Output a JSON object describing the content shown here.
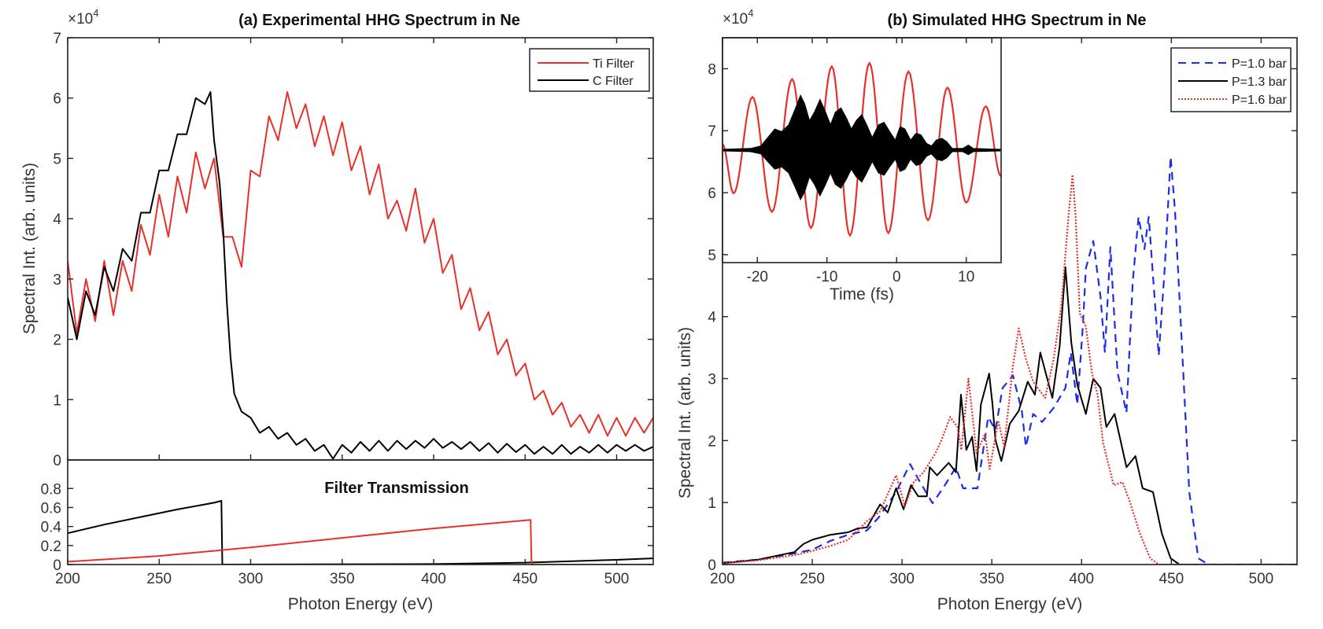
{
  "chart_data": [
    {
      "panel": "a-top",
      "type": "line",
      "title": "(a) Experimental HHG Spectrum in Ne",
      "ylabel": "Spectral Int. (arb. units)",
      "y_multiplier": {
        "base": "×10",
        "exp": "4"
      },
      "xlim": [
        200,
        520
      ],
      "ylim": [
        0,
        7
      ],
      "x_ticks": [
        200,
        250,
        300,
        350,
        400,
        450,
        500
      ],
      "y_ticks": [
        0,
        1,
        2,
        3,
        4,
        5,
        6,
        7
      ],
      "grid": false,
      "legend": "top-right",
      "series": [
        {
          "name": "Ti Filter",
          "color": "#e8302a",
          "style": "solid",
          "x": [
            200,
            205,
            210,
            215,
            220,
            225,
            230,
            235,
            240,
            245,
            250,
            255,
            260,
            265,
            270,
            275,
            280,
            285,
            290,
            295,
            300,
            305,
            310,
            315,
            320,
            325,
            330,
            335,
            340,
            345,
            350,
            355,
            360,
            365,
            370,
            375,
            380,
            385,
            390,
            395,
            400,
            405,
            410,
            415,
            420,
            425,
            430,
            435,
            440,
            445,
            450,
            455,
            460,
            465,
            470,
            475,
            480,
            485,
            490,
            495,
            500,
            505,
            510,
            515,
            520
          ],
          "y": [
            3.3,
            2.1,
            3.0,
            2.3,
            3.3,
            2.4,
            3.3,
            2.8,
            3.9,
            3.4,
            4.4,
            3.7,
            4.7,
            4.1,
            5.1,
            4.5,
            5.0,
            3.7,
            3.7,
            3.2,
            4.8,
            4.7,
            5.7,
            5.3,
            6.1,
            5.5,
            5.9,
            5.2,
            5.7,
            5.05,
            5.6,
            4.8,
            5.2,
            4.4,
            4.9,
            4.0,
            4.3,
            3.8,
            4.5,
            3.6,
            4.0,
            3.1,
            3.4,
            2.5,
            2.85,
            2.15,
            2.45,
            1.75,
            2.0,
            1.4,
            1.6,
            1.0,
            1.15,
            0.75,
            0.95,
            0.55,
            0.75,
            0.45,
            0.75,
            0.4,
            0.7,
            0.4,
            0.7,
            0.45,
            0.7
          ]
        },
        {
          "name": "C Filter",
          "color": "#000000",
          "style": "solid",
          "x": [
            200,
            205,
            210,
            215,
            220,
            225,
            230,
            235,
            240,
            245,
            250,
            255,
            260,
            265,
            270,
            275,
            278,
            280,
            283,
            285,
            287,
            289,
            291,
            295,
            300,
            305,
            310,
            315,
            320,
            325,
            330,
            335,
            340,
            345,
            350,
            355,
            360,
            365,
            370,
            375,
            380,
            385,
            390,
            395,
            400,
            405,
            410,
            415,
            420,
            425,
            430,
            435,
            440,
            445,
            450,
            455,
            460,
            465,
            470,
            475,
            480,
            485,
            490,
            495,
            500,
            505,
            510,
            515,
            520
          ],
          "y": [
            2.7,
            2.0,
            2.8,
            2.4,
            3.2,
            2.8,
            3.5,
            3.3,
            4.1,
            4.1,
            4.8,
            4.8,
            5.4,
            5.4,
            6.0,
            5.9,
            6.1,
            5.3,
            4.6,
            3.8,
            2.6,
            1.7,
            1.1,
            0.8,
            0.7,
            0.45,
            0.55,
            0.35,
            0.45,
            0.25,
            0.35,
            0.15,
            0.25,
            0.02,
            0.25,
            0.12,
            0.3,
            0.15,
            0.32,
            0.15,
            0.32,
            0.18,
            0.32,
            0.2,
            0.35,
            0.2,
            0.3,
            0.18,
            0.3,
            0.15,
            0.28,
            0.12,
            0.27,
            0.13,
            0.25,
            0.1,
            0.22,
            0.1,
            0.25,
            0.1,
            0.22,
            0.12,
            0.25,
            0.12,
            0.25,
            0.15,
            0.25,
            0.15,
            0.22
          ]
        }
      ]
    },
    {
      "panel": "a-bottom",
      "type": "line",
      "title": "Filter Transmission",
      "xlabel": "Photon Energy (eV)",
      "xlim": [
        200,
        520
      ],
      "ylim": [
        0,
        1.1
      ],
      "x_ticks": [
        200,
        250,
        300,
        350,
        400,
        450,
        500
      ],
      "y_ticks": [
        0,
        0.2,
        0.4,
        0.6,
        0.8
      ],
      "grid": false,
      "series": [
        {
          "color": "#000000",
          "style": "solid",
          "x": [
            200,
            220,
            240,
            260,
            280,
            284,
            284.5,
            400,
            450,
            500,
            520
          ],
          "y": [
            0.33,
            0.42,
            0.5,
            0.58,
            0.65,
            0.67,
            0,
            0.005,
            0.02,
            0.05,
            0.065
          ]
        },
        {
          "color": "#e8302a",
          "style": "solid",
          "x": [
            200,
            250,
            300,
            350,
            400,
            453,
            453.5,
            520
          ],
          "y": [
            0.03,
            0.09,
            0.18,
            0.28,
            0.38,
            0.47,
            0,
            0
          ]
        }
      ]
    },
    {
      "panel": "b-main",
      "type": "line",
      "title": "(b) Simulated HHG Spectrum in Ne",
      "xlabel": "Photon Energy (eV)",
      "ylabel": "Spectral Int. (arb. units)",
      "y_multiplier": {
        "base": "×10",
        "exp": "4"
      },
      "xlim": [
        200,
        520
      ],
      "ylim": [
        0,
        8.5
      ],
      "x_ticks": [
        200,
        250,
        300,
        350,
        400,
        450,
        500
      ],
      "y_ticks": [
        0,
        1,
        2,
        3,
        4,
        5,
        6,
        7,
        8
      ],
      "grid": false,
      "legend": "top-right",
      "series": [
        {
          "name": "P=1.0 bar",
          "color": "#1a2ee8",
          "style": "dashed",
          "x": [
            200,
            220,
            240,
            250,
            260,
            270,
            280.5,
            287,
            296.7,
            304.5,
            309,
            317,
            322.8,
            330,
            334,
            342,
            348,
            352,
            356,
            361.8,
            366.7,
            369,
            373,
            378,
            384.5,
            391,
            394,
            397.6,
            400.8,
            402.4,
            406.5,
            410.6,
            413,
            416,
            420,
            425,
            428.5,
            431.7,
            435,
            437.4,
            443,
            446.3,
            449.6,
            452,
            455,
            457.7,
            460,
            465,
            470.7,
            520
          ],
          "y": [
            0.03,
            0.08,
            0.18,
            0.24,
            0.38,
            0.48,
            0.55,
            0.76,
            1.17,
            1.62,
            1.38,
            0.99,
            1.23,
            1.57,
            1.23,
            1.23,
            2.38,
            2.17,
            2.85,
            3.05,
            2.48,
            1.9,
            2.43,
            2.3,
            2.53,
            2.85,
            3.42,
            2.58,
            3.89,
            4.78,
            5.22,
            4.31,
            3.42,
            5.12,
            3.1,
            2.45,
            4.57,
            5.61,
            5.09,
            5.61,
            3.37,
            4.78,
            6.58,
            5.72,
            4.05,
            2.48,
            1.17,
            0.1,
            0,
            0
          ]
        },
        {
          "name": "P=1.3 bar",
          "color": "#000000",
          "style": "solid",
          "x": [
            200,
            220,
            240,
            245,
            250,
            260,
            270,
            275,
            280.5,
            287.8,
            292,
            296.7,
            300.8,
            305,
            309,
            313.8,
            315.4,
            319.5,
            326,
            330,
            332.8,
            335.8,
            339,
            341.5,
            343.9,
            348.5,
            350.4,
            352,
            355.3,
            360,
            365,
            370,
            374,
            377,
            383.7,
            387.8,
            391,
            394.3,
            397.6,
            402.4,
            406.5,
            410.6,
            413.8,
            418.4,
            425,
            430,
            434,
            439.8,
            444.7,
            449.6,
            454.5,
            520
          ],
          "y": [
            0.02,
            0.08,
            0.2,
            0.33,
            0.4,
            0.48,
            0.52,
            0.58,
            0.6,
            0.97,
            0.84,
            1.23,
            0.89,
            1.28,
            1.1,
            1.1,
            1.57,
            1.44,
            1.64,
            1.49,
            2.74,
            1.85,
            2.06,
            1.51,
            2.58,
            3.08,
            2.58,
            2.01,
            1.67,
            2.27,
            2.48,
            2.95,
            2.74,
            3.42,
            2.69,
            3.52,
            4.8,
            3.58,
            2.9,
            2.43,
            3.0,
            2.85,
            2.22,
            2.43,
            1.57,
            1.75,
            1.23,
            1.17,
            0.5,
            0.1,
            0,
            0
          ]
        },
        {
          "name": "P=1.6 bar",
          "color": "#e8302a",
          "style": "dotted",
          "x": [
            200,
            220,
            240,
            250,
            260,
            270,
            280.5,
            287.8,
            296.7,
            301.6,
            306.5,
            312,
            318.7,
            322,
            326.8,
            330.9,
            333,
            337,
            341.5,
            346.3,
            348.8,
            353.6,
            356.9,
            361.8,
            365,
            369,
            373,
            379.7,
            384.5,
            388.6,
            392.7,
            395,
            396.7,
            399,
            402.4,
            405.7,
            408.9,
            412,
            417.9,
            422.8,
            426.8,
            432.5,
            438.2,
            443,
            520
          ],
          "y": [
            0.02,
            0.07,
            0.15,
            0.22,
            0.3,
            0.4,
            0.7,
            0.86,
            1.44,
            0.94,
            1.33,
            1.49,
            1.8,
            2.01,
            2.38,
            2.22,
            1.85,
            3.0,
            1.8,
            2.11,
            1.54,
            2.32,
            1.9,
            3.21,
            3.81,
            3.32,
            2.95,
            2.69,
            3.32,
            4.15,
            5.61,
            6.29,
            5.61,
            4.05,
            3.84,
            3.1,
            2.74,
            1.96,
            1.28,
            1.33,
            1.02,
            0.5,
            0.1,
            0,
            0
          ]
        }
      ]
    },
    {
      "panel": "b-inset",
      "type": "line",
      "xlabel": "Time (fs)",
      "xlim": [
        -25,
        15
      ],
      "ylim": [
        -1.33,
        1.33
      ],
      "x_ticks": [
        -20,
        -10,
        0,
        10
      ],
      "grid": false,
      "series": [
        {
          "color": "#e8302a",
          "style": "solid",
          "shape": "field-extrema",
          "x": [
            -25,
            -23.4,
            -20.7,
            -17.9,
            -15.0,
            -12.3,
            -9.3,
            -6.7,
            -3.9,
            -1.2,
            1.7,
            4.5,
            7.3,
            10.0,
            12.8,
            15.0
          ],
          "y": [
            0.07,
            -0.51,
            0.63,
            -0.73,
            0.84,
            -0.92,
            0.99,
            -1.01,
            1.03,
            -0.98,
            0.93,
            -0.83,
            0.74,
            -0.62,
            0.52,
            -0.31
          ]
        },
        {
          "color": "#000000",
          "style": "filled-envelope",
          "shape": "envelope",
          "x": [
            -25,
            -21,
            -19.5,
            -18.5,
            -17.5,
            -16.5,
            -15.5,
            -14.5,
            -13.8,
            -13.2,
            -12.5,
            -11.8,
            -11,
            -10.2,
            -9.5,
            -8.8,
            -8,
            -7.2,
            -6.5,
            -5.8,
            -5,
            -4.3,
            -3.5,
            -2.6,
            -1.8,
            -1,
            -0.2,
            0.5,
            1.2,
            2,
            2.8,
            3.5,
            4.3,
            5,
            5.7,
            6.5,
            7.2,
            8,
            9.5,
            10.3,
            11,
            15
          ],
          "y": [
            0.01,
            0.02,
            0.05,
            0.15,
            0.25,
            0.22,
            0.3,
            0.5,
            0.65,
            0.55,
            0.35,
            0.45,
            0.6,
            0.45,
            0.3,
            0.45,
            0.5,
            0.38,
            0.25,
            0.35,
            0.42,
            0.3,
            0.15,
            0.3,
            0.33,
            0.22,
            0.12,
            0.28,
            0.25,
            0.12,
            0.2,
            0.18,
            0.08,
            0.05,
            0.12,
            0.14,
            0.1,
            0.02,
            0.02,
            0.06,
            0.02,
            0.01
          ]
        }
      ]
    }
  ]
}
